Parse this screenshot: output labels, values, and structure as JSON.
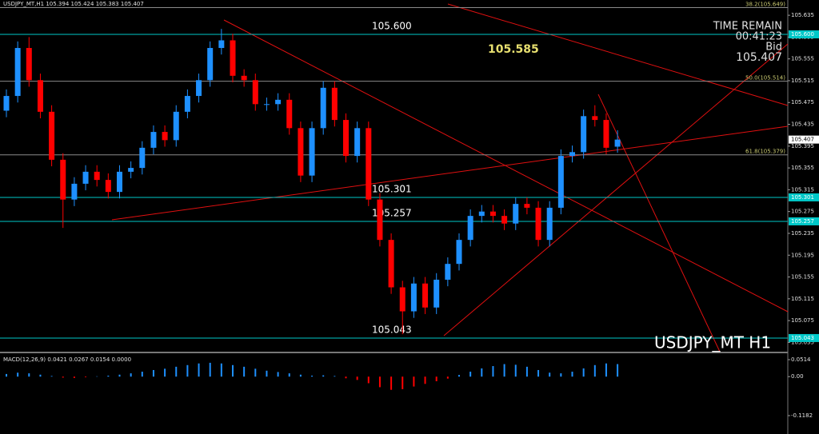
{
  "chart_data": {
    "type": "candlestick",
    "header": "USDJPY_MT,H1  105.394 105.424 105.383 105.407",
    "symbol_label": "USDJPY_MT H1",
    "info": [
      "TIME REMAIN",
      "00:41:23",
      "Bid",
      "105.407"
    ],
    "bid_price": {
      "value": 105.407,
      "label": "105.407"
    },
    "annotation": "105.585",
    "up_color": "#1e90ff",
    "down_color": "#ff0000",
    "ylim": [
      105.018,
      105.663
    ],
    "yticks": [
      105.035,
      105.075,
      105.115,
      105.155,
      105.195,
      105.235,
      105.275,
      105.315,
      105.355,
      105.395,
      105.435,
      105.475,
      105.515,
      105.555,
      105.595,
      105.635
    ],
    "levels": [
      {
        "value": 105.649,
        "label": "38.2(105.649)",
        "color": "#8a8a8a"
      },
      {
        "value": 105.6,
        "label": "105.600",
        "color": "#00c8c8"
      },
      {
        "value": 105.514,
        "label": "50.0(105.514)",
        "color": "#8a8a8a"
      },
      {
        "value": 105.379,
        "label": "61.8(105.379)",
        "color": "#8a8a8a"
      },
      {
        "value": 105.301,
        "label": "105.301",
        "color": "#00c8c8"
      },
      {
        "value": 105.257,
        "label": "105.257",
        "color": "#00c8c8"
      },
      {
        "value": 105.043,
        "label": "105.043",
        "color": "#00c8c8"
      }
    ],
    "open": [
      105.46,
      105.487,
      105.575,
      105.516,
      105.458,
      105.37,
      105.297,
      105.326,
      105.348,
      105.333,
      105.311,
      105.348,
      105.355,
      105.392,
      105.421,
      105.406,
      105.458,
      105.487,
      105.516,
      105.575,
      105.589,
      105.524,
      105.516,
      105.472,
      105.472,
      105.48,
      105.428,
      105.341,
      105.428,
      105.502,
      105.443,
      105.377,
      105.428,
      105.297,
      105.223,
      105.136,
      105.092,
      105.143,
      105.099,
      105.15,
      105.179,
      105.223,
      105.267,
      105.275,
      105.267,
      105.253,
      105.289,
      105.282,
      105.223,
      105.282,
      105.377,
      105.384,
      105.45,
      105.443,
      105.394
    ],
    "high": [
      105.499,
      105.587,
      105.595,
      105.528,
      105.47,
      105.382,
      105.338,
      105.36,
      105.36,
      105.345,
      105.36,
      105.367,
      105.404,
      105.433,
      105.433,
      105.47,
      105.499,
      105.528,
      105.587,
      105.61,
      105.601,
      105.536,
      105.528,
      105.484,
      105.492,
      105.492,
      105.44,
      105.44,
      105.514,
      105.514,
      105.455,
      105.44,
      105.44,
      105.309,
      105.235,
      105.148,
      105.155,
      105.155,
      105.162,
      105.191,
      105.235,
      105.279,
      105.287,
      105.287,
      105.279,
      105.301,
      105.301,
      105.294,
      105.294,
      105.389,
      105.396,
      105.462,
      105.47,
      105.455,
      105.424
    ],
    "low": [
      105.448,
      105.475,
      105.504,
      105.446,
      105.358,
      105.245,
      105.285,
      105.314,
      105.321,
      105.299,
      105.299,
      105.336,
      105.343,
      105.38,
      105.394,
      105.394,
      105.446,
      105.475,
      105.504,
      105.563,
      105.512,
      105.504,
      105.46,
      105.46,
      105.46,
      105.416,
      105.329,
      105.329,
      105.416,
      105.431,
      105.365,
      105.365,
      105.285,
      105.211,
      105.124,
      105.05,
      105.08,
      105.087,
      105.087,
      105.138,
      105.167,
      105.211,
      105.255,
      105.255,
      105.241,
      105.241,
      105.27,
      105.211,
      105.211,
      105.27,
      105.365,
      105.372,
      105.431,
      105.38,
      105.383
    ],
    "close": [
      105.487,
      105.575,
      105.516,
      105.458,
      105.37,
      105.297,
      105.326,
      105.348,
      105.333,
      105.311,
      105.348,
      105.355,
      105.392,
      105.421,
      105.406,
      105.458,
      105.487,
      105.516,
      105.575,
      105.589,
      105.524,
      105.516,
      105.472,
      105.472,
      105.48,
      105.428,
      105.341,
      105.428,
      105.502,
      105.443,
      105.377,
      105.428,
      105.297,
      105.223,
      105.136,
      105.092,
      105.143,
      105.099,
      105.15,
      105.179,
      105.223,
      105.267,
      105.275,
      105.267,
      105.253,
      105.289,
      105.282,
      105.223,
      105.282,
      105.377,
      105.384,
      105.45,
      105.443,
      105.392,
      105.407
    ],
    "macd": {
      "label": "MACD(12,26,9) 0.0421 0.0267 0.0154 0.0000",
      "ylim": [
        -0.1667,
        0.0684
      ],
      "yticks": [
        {
          "value": 0.0514,
          "label": "0.0514"
        },
        {
          "value": 0,
          "label": "0.00"
        },
        {
          "value": -0.1182,
          "label": "-0.1182"
        }
      ],
      "values": [
        0.008,
        0.012,
        0.01,
        0.006,
        0.002,
        -0.003,
        -0.004,
        -0.002,
        0.001,
        0.003,
        0.006,
        0.01,
        0.015,
        0.02,
        0.024,
        0.03,
        0.035,
        0.04,
        0.042,
        0.04,
        0.035,
        0.03,
        0.024,
        0.018,
        0.014,
        0.01,
        0.006,
        0.003,
        0.004,
        0.002,
        -0.005,
        -0.01,
        -0.02,
        -0.032,
        -0.04,
        -0.038,
        -0.03,
        -0.022,
        -0.014,
        -0.006,
        0.005,
        0.015,
        0.025,
        0.032,
        0.038,
        0.036,
        0.03,
        0.02,
        0.012,
        0.01,
        0.015,
        0.025,
        0.035,
        0.04,
        0.038
      ]
    }
  }
}
